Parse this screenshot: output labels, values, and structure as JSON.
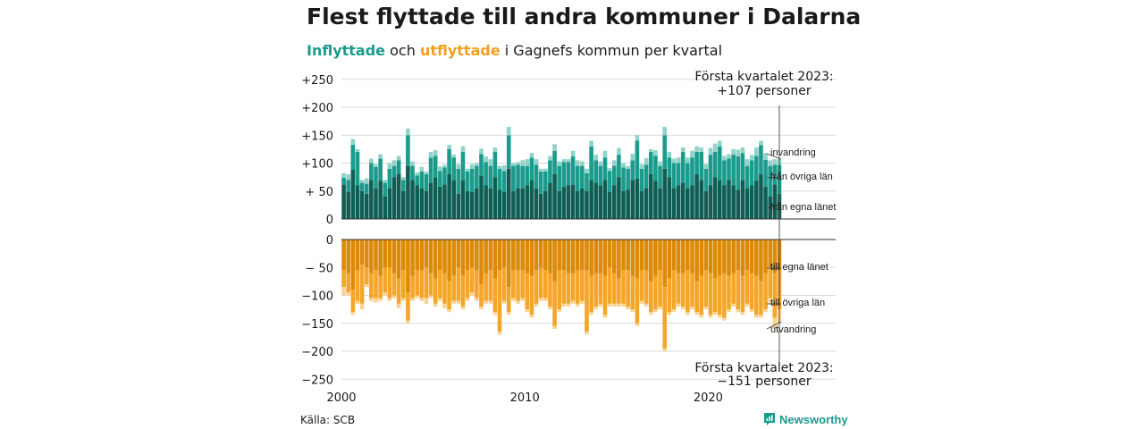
{
  "title": "Flest flyttade till andra kommuner i Dalarna",
  "subtitle": {
    "part1": "Inflyttade",
    "part2": " och ",
    "part3": "utflyttade",
    "part4": " i Gagnefs kommun per kvartal"
  },
  "source": "Källa: SCB",
  "logo": {
    "text": "Newsworthy",
    "icon": "newsworthy-logo-icon"
  },
  "colors": {
    "in_egna": "#0f5e54",
    "in_ovriga": "#1a9b8c",
    "in_invandring": "#8fd3c9",
    "out_egna": "#dc8a0a",
    "out_ovriga": "#f4a62a",
    "out_utvandring": "#fbd494",
    "grid": "#d9d9d9",
    "axis": "#333333"
  },
  "chart_data": {
    "type": "bar",
    "stacked": true,
    "subtype": "diverging stacked quarterly bars",
    "y_ticks_top": [
      "+250",
      "+200",
      "+150",
      "+100",
      "+ 50",
      "0"
    ],
    "y_ticks_bottom": [
      "0",
      "− 50",
      "−100",
      "−150",
      "−200",
      "−250"
    ],
    "x_ticks": [
      "2000",
      "2010",
      "2020"
    ],
    "x_range": [
      "2000 Q1",
      "2023 Q1"
    ],
    "ylim_top": [
      0,
      250
    ],
    "ylim_bottom": [
      -250,
      0
    ],
    "grid": true,
    "annotation_top": {
      "line1": "Första kvartalet 2023:",
      "line2": "+107 personer"
    },
    "annotation_bottom": {
      "line1": "Första kvartalet 2023:",
      "line2": "−151 personer"
    },
    "series_labels": {
      "invandring": "invandring",
      "fran_ovriga_lan": "från övriga län",
      "fran_egna_lanet": "från egna länet",
      "till_egna_lanet": "till egna länet",
      "till_ovriga_lan": "till övriga län",
      "utvandring": "utvandring"
    },
    "inflows": {
      "fran_egna_lanet": [
        62,
        48,
        88,
        60,
        50,
        45,
        70,
        55,
        68,
        40,
        55,
        75,
        80,
        50,
        95,
        70,
        60,
        55,
        50,
        65,
        75,
        58,
        62,
        80,
        70,
        45,
        70,
        50,
        48,
        55,
        78,
        60,
        55,
        75,
        52,
        48,
        90,
        50,
        55,
        55,
        60,
        70,
        55,
        45,
        50,
        65,
        80,
        50,
        58,
        60,
        62,
        50,
        55,
        50,
        70,
        65,
        60,
        70,
        48,
        60,
        75,
        50,
        52,
        70,
        72,
        50,
        55,
        80,
        68,
        55,
        90,
        75,
        55,
        60,
        65,
        55,
        60,
        80,
        70,
        50,
        60,
        75,
        70,
        60,
        70,
        60,
        52,
        70,
        55,
        60,
        68,
        80,
        58,
        40,
        62,
        45
      ],
      "fran_ovriga_lan": [
        12,
        22,
        45,
        60,
        15,
        18,
        30,
        38,
        40,
        25,
        35,
        20,
        25,
        20,
        55,
        25,
        18,
        30,
        30,
        45,
        38,
        28,
        30,
        45,
        40,
        45,
        50,
        35,
        42,
        40,
        38,
        42,
        40,
        45,
        38,
        38,
        60,
        45,
        42,
        40,
        35,
        40,
        42,
        40,
        35,
        40,
        42,
        45,
        44,
        42,
        50,
        45,
        40,
        32,
        60,
        40,
        35,
        40,
        38,
        35,
        40,
        42,
        38,
        35,
        68,
        40,
        42,
        40,
        45,
        40,
        60,
        35,
        45,
        40,
        55,
        45,
        50,
        40,
        50,
        40,
        55,
        45,
        60,
        45,
        38,
        55,
        60,
        48,
        40,
        45,
        45,
        52,
        48,
        55,
        35,
        52
      ],
      "invandring": [
        8,
        10,
        10,
        5,
        5,
        10,
        8,
        5,
        8,
        5,
        10,
        10,
        8,
        5,
        12,
        8,
        5,
        8,
        5,
        10,
        10,
        8,
        5,
        8,
        5,
        8,
        10,
        5,
        8,
        5,
        10,
        10,
        12,
        8,
        5,
        10,
        15,
        5,
        5,
        10,
        12,
        8,
        10,
        5,
        5,
        8,
        12,
        8,
        5,
        5,
        10,
        10,
        8,
        8,
        10,
        10,
        8,
        12,
        5,
        10,
        12,
        8,
        5,
        12,
        10,
        8,
        12,
        5,
        10,
        8,
        15,
        10,
        8,
        10,
        8,
        10,
        12,
        10,
        8,
        8,
        12,
        15,
        10,
        8,
        8,
        10,
        12,
        10,
        12,
        10,
        15,
        8,
        12,
        10,
        10,
        10
      ]
    },
    "outflows": {
      "till_egna_lanet": [
        -55,
        -60,
        -90,
        -55,
        -45,
        -50,
        -60,
        -55,
        -65,
        -50,
        -50,
        -60,
        -70,
        -55,
        -95,
        -65,
        -55,
        -55,
        -50,
        -60,
        -70,
        -55,
        -60,
        -75,
        -65,
        -50,
        -65,
        -55,
        -50,
        -55,
        -80,
        -60,
        -55,
        -70,
        -55,
        -50,
        -85,
        -55,
        -55,
        -55,
        -60,
        -65,
        -55,
        -50,
        -55,
        -60,
        -75,
        -55,
        -55,
        -60,
        -60,
        -55,
        -55,
        -55,
        -65,
        -60,
        -60,
        -65,
        -50,
        -60,
        -70,
        -55,
        -55,
        -65,
        -70,
        -55,
        -55,
        -75,
        -65,
        -55,
        -85,
        -70,
        -55,
        -60,
        -60,
        -55,
        -60,
        -75,
        -65,
        -55,
        -60,
        -70,
        -65,
        -60,
        -65,
        -60,
        -55,
        -65,
        -55,
        -60,
        -65,
        -75,
        -60,
        -50,
        -60,
        -55
      ],
      "till_ovriga_lan": [
        -30,
        -35,
        -40,
        -55,
        -70,
        -30,
        -45,
        -50,
        -40,
        -45,
        -55,
        -40,
        -45,
        -50,
        -50,
        -40,
        -45,
        -50,
        -55,
        -40,
        -45,
        -50,
        -55,
        -50,
        -45,
        -60,
        -55,
        -50,
        -45,
        -50,
        -40,
        -50,
        -55,
        -60,
        -110,
        -60,
        -45,
        -50,
        -55,
        -50,
        -65,
        -70,
        -60,
        -55,
        -50,
        -60,
        -80,
        -70,
        -60,
        -55,
        -50,
        -60,
        -55,
        -110,
        -65,
        -60,
        -55,
        -70,
        -65,
        -55,
        -45,
        -60,
        -65,
        -60,
        -80,
        -55,
        -60,
        -55,
        -60,
        -65,
        -110,
        -60,
        -70,
        -55,
        -60,
        -75,
        -60,
        -55,
        -70,
        -65,
        -75,
        -60,
        -70,
        -80,
        -60,
        -55,
        -70,
        -65,
        -60,
        -65,
        -70,
        -60,
        -65,
        -55,
        -80,
        -70
      ],
      "utvandring": [
        -15,
        -5,
        -5,
        -5,
        -10,
        -5,
        -5,
        -8,
        -5,
        -5,
        -5,
        -5,
        -8,
        -5,
        -5,
        -5,
        -5,
        -5,
        -10,
        -5,
        -5,
        -5,
        -8,
        -5,
        -5,
        -5,
        -5,
        -5,
        -5,
        -5,
        -5,
        -5,
        -5,
        -5,
        -5,
        -5,
        -5,
        -5,
        -5,
        -5,
        -5,
        -5,
        -5,
        -5,
        -5,
        -5,
        -5,
        -5,
        -5,
        -5,
        -5,
        -5,
        -5,
        -5,
        -5,
        -5,
        -5,
        -5,
        -5,
        -5,
        -5,
        -5,
        -5,
        -5,
        -5,
        -5,
        -5,
        -5,
        -5,
        -5,
        -5,
        -5,
        -5,
        -5,
        -5,
        -5,
        -5,
        -5,
        -5,
        -5,
        -5,
        -5,
        -5,
        -5,
        -5,
        -5,
        -5,
        -5,
        -5,
        -5,
        -5,
        -5,
        -5,
        -10,
        -20,
        -26
      ]
    }
  }
}
